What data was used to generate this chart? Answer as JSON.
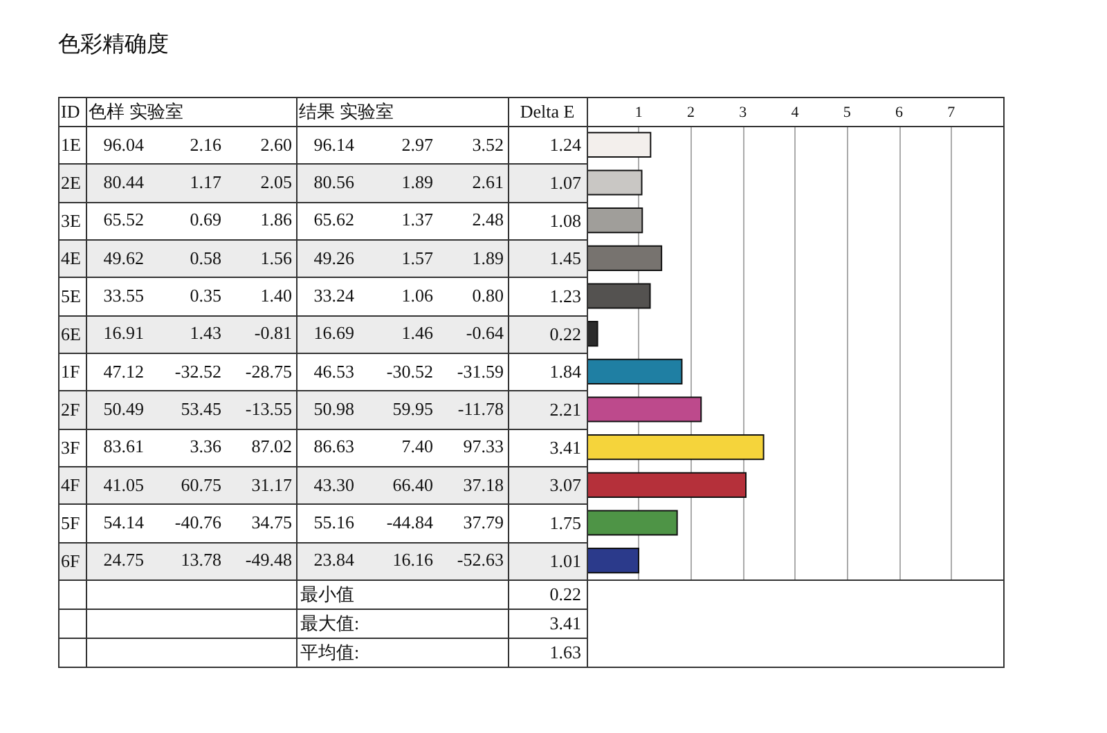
{
  "chart_data": {
    "type": "bar",
    "orientation": "horizontal",
    "title": "色彩精确度",
    "ylabel": "ID",
    "xlabel": "Delta E",
    "categories": [
      "1E",
      "2E",
      "3E",
      "4E",
      "5E",
      "6E",
      "1F",
      "2F",
      "3F",
      "4F",
      "5F",
      "6F"
    ],
    "values": [
      1.24,
      1.07,
      1.08,
      1.45,
      1.23,
      0.22,
      1.84,
      2.21,
      3.41,
      3.07,
      1.75,
      1.01
    ],
    "colors": [
      "#f3efec",
      "#c9c7c4",
      "#a09e9a",
      "#77736f",
      "#545250",
      "#2b2b2b",
      "#1f7fa3",
      "#bd4a8c",
      "#f5d43b",
      "#b5303a",
      "#4e9446",
      "#2b3a8b"
    ],
    "x2lim": [
      0,
      8
    ],
    "x2ticks": [
      1,
      2,
      3,
      4,
      5,
      6,
      7
    ],
    "grid": "x",
    "data_labels": true,
    "annotations": [
      "色样 实验室",
      "结果 实验室",
      "96.04 2.16 2.60",
      "96.14 2.97 3.52",
      "80.44 1.17 2.05",
      "80.56 1.89 2.61",
      "65.52 0.69 1.86",
      "65.62 1.37 2.48",
      "49.62 0.58 1.56",
      "49.26 1.57 1.89",
      "33.55 0.35 1.40",
      "33.24 1.06 0.80",
      "16.91 1.43 -0.81",
      "16.69 1.46 -0.64",
      "47.12 -32.52 -28.75",
      "46.53 -30.52 -31.59",
      "50.49 53.45 -13.55",
      "50.98 59.95 -11.78",
      "83.61 3.36 87.02",
      "86.63 7.40 97.33",
      "41.05 60.75 31.17",
      "43.30 66.40 37.18",
      "54.14 -40.76 34.75",
      "55.16 -44.84 37.79",
      "24.75 13.78 -49.48",
      "23.84 16.16 -52.63",
      "最小值",
      "0.22",
      "最大值:",
      "3.41",
      "平均值:",
      "1.63"
    ]
  }
}
